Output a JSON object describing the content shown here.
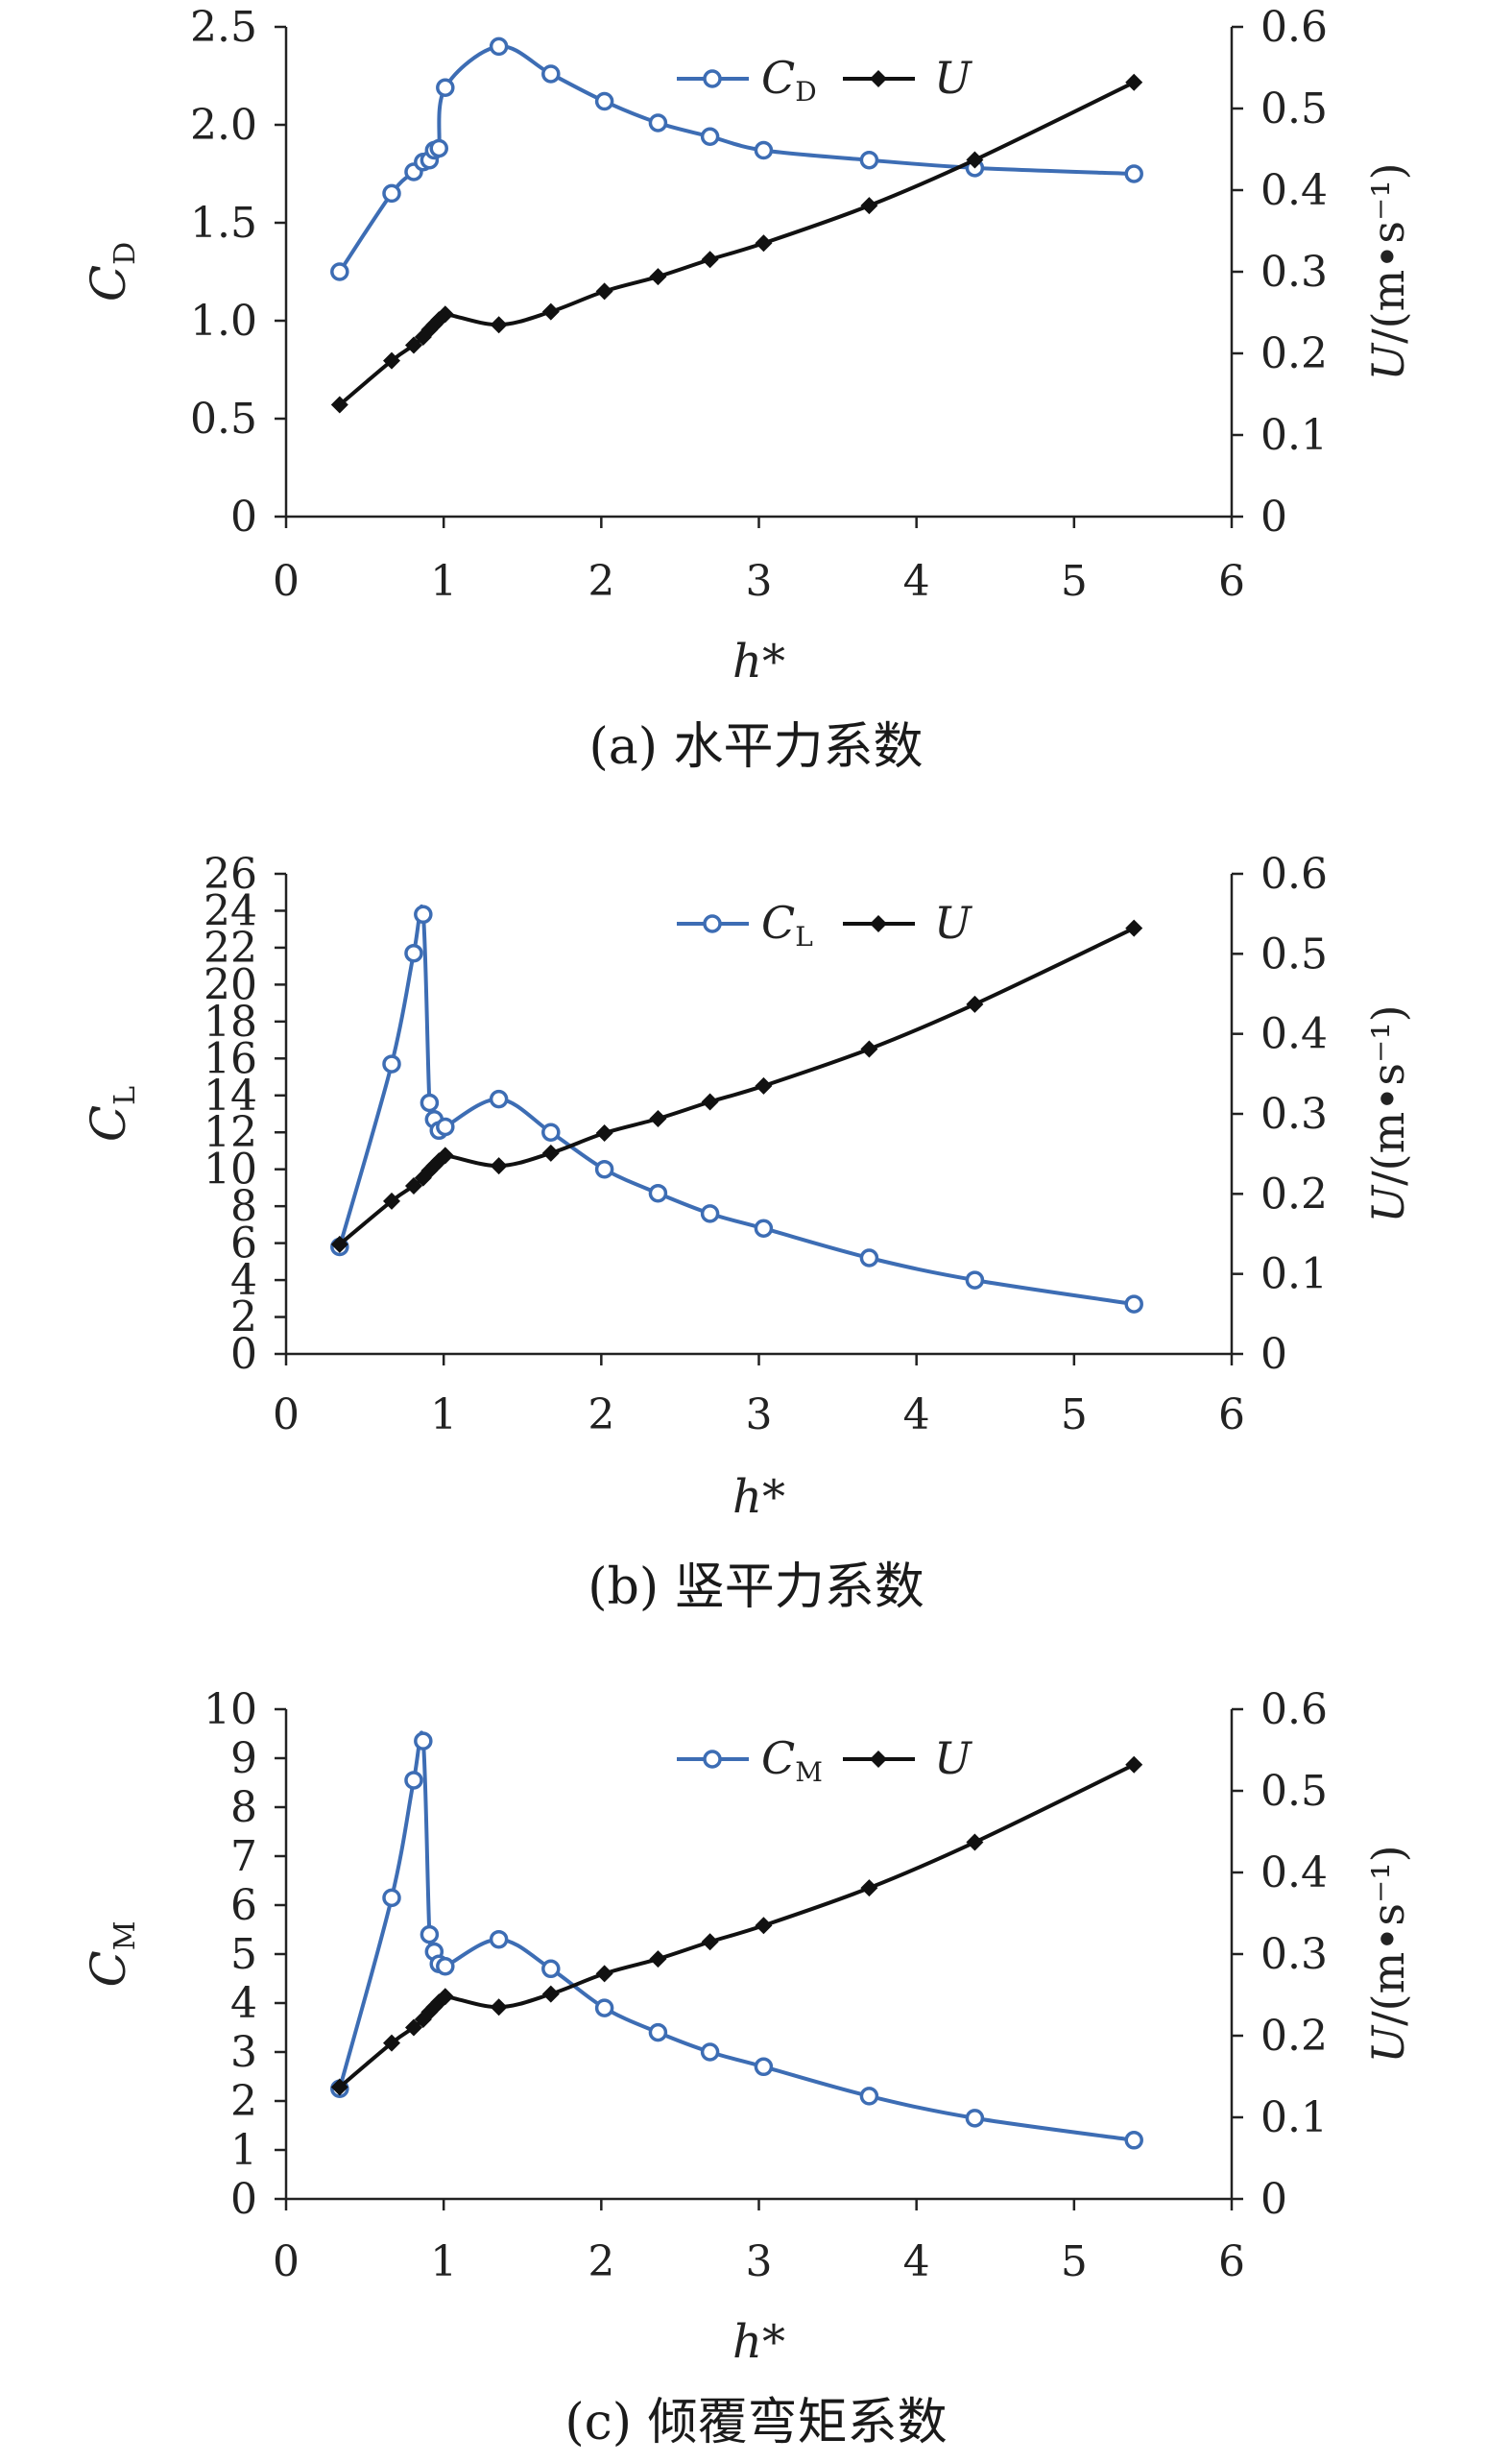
{
  "colors": {
    "coef": "#3d6db4",
    "u": "#111111",
    "axis": "#222222"
  },
  "chart_data": [
    {
      "type": "line",
      "caption": "(a) 水平力系数",
      "xlabel": "h*",
      "ylabel": "C",
      "ylabel_sub": "D",
      "y2label": "U/(m•s⁻¹)",
      "xlim": [
        0,
        6
      ],
      "xticks": [
        "0",
        "1",
        "2",
        "3",
        "4",
        "5",
        "6"
      ],
      "ylim": [
        0,
        2.5
      ],
      "yticks": [
        "0",
        "0.5",
        "1.0",
        "1.5",
        "2.0",
        "2.5"
      ],
      "y2lim": [
        0,
        0.6
      ],
      "y2ticks": [
        "0",
        "0.1",
        "0.2",
        "0.3",
        "0.4",
        "0.5",
        "0.6"
      ],
      "legend": {
        "position": "top-center",
        "coef_label": "C",
        "coef_sub": "D",
        "u_label": "U"
      },
      "series": [
        {
          "name": "CD",
          "axis": "left",
          "marker": "circle",
          "x": [
            0.34,
            0.67,
            0.81,
            0.87,
            0.91,
            0.94,
            0.97,
            1.01,
            1.35,
            1.68,
            2.02,
            2.36,
            2.69,
            3.03,
            3.7,
            4.37,
            5.38
          ],
          "y": [
            1.25,
            1.65,
            1.76,
            1.81,
            1.82,
            1.87,
            1.88,
            2.19,
            2.4,
            2.26,
            2.12,
            2.01,
            1.94,
            1.87,
            1.82,
            1.78,
            1.75
          ]
        },
        {
          "name": "U",
          "axis": "right",
          "marker": "diamond",
          "x": [
            0.34,
            0.67,
            0.81,
            0.87,
            0.91,
            0.94,
            0.97,
            1.01,
            1.35,
            1.68,
            2.02,
            2.36,
            2.69,
            3.03,
            3.7,
            4.37,
            5.38
          ],
          "y": [
            0.137,
            0.191,
            0.21,
            0.22,
            0.229,
            0.235,
            0.241,
            0.248,
            0.235,
            0.251,
            0.276,
            0.294,
            0.315,
            0.335,
            0.381,
            0.437,
            0.532
          ]
        }
      ]
    },
    {
      "type": "line",
      "caption": "(b) 竖平力系数",
      "xlabel": "h*",
      "ylabel": "C",
      "ylabel_sub": "L",
      "y2label": "U/(m•s⁻¹)",
      "xlim": [
        0,
        6
      ],
      "xticks": [
        "0",
        "1",
        "2",
        "3",
        "4",
        "5",
        "6"
      ],
      "ylim": [
        0,
        26
      ],
      "yticks": [
        "0",
        "2",
        "4",
        "6",
        "8",
        "10",
        "12",
        "14",
        "16",
        "18",
        "20",
        "22",
        "24",
        "26"
      ],
      "y2lim": [
        0,
        0.6
      ],
      "y2ticks": [
        "0",
        "0.1",
        "0.2",
        "0.3",
        "0.4",
        "0.5",
        "0.6"
      ],
      "legend": {
        "position": "top-center",
        "coef_label": "C",
        "coef_sub": "L",
        "u_label": "U"
      },
      "series": [
        {
          "name": "CL",
          "axis": "left",
          "marker": "circle",
          "x": [
            0.34,
            0.67,
            0.81,
            0.87,
            0.91,
            0.94,
            0.97,
            1.01,
            1.35,
            1.68,
            2.02,
            2.36,
            2.69,
            3.03,
            3.7,
            4.37,
            5.38
          ],
          "y": [
            5.8,
            15.7,
            21.7,
            23.8,
            13.6,
            12.7,
            12.1,
            12.3,
            13.8,
            12.0,
            10.0,
            8.7,
            7.6,
            6.8,
            5.2,
            4.0,
            2.7
          ]
        },
        {
          "name": "U",
          "axis": "right",
          "marker": "diamond",
          "x": [
            0.34,
            0.67,
            0.81,
            0.87,
            0.91,
            0.94,
            0.97,
            1.01,
            1.35,
            1.68,
            2.02,
            2.36,
            2.69,
            3.03,
            3.7,
            4.37,
            5.38
          ],
          "y": [
            0.137,
            0.191,
            0.21,
            0.22,
            0.229,
            0.235,
            0.241,
            0.248,
            0.235,
            0.251,
            0.276,
            0.294,
            0.315,
            0.335,
            0.381,
            0.437,
            0.532
          ]
        }
      ]
    },
    {
      "type": "line",
      "caption": "(c) 倾覆弯矩系数",
      "xlabel": "h*",
      "ylabel": "C",
      "ylabel_sub": "M",
      "y2label": "U/(m•s⁻¹)",
      "xlim": [
        0,
        6
      ],
      "xticks": [
        "0",
        "1",
        "2",
        "3",
        "4",
        "5",
        "6"
      ],
      "ylim": [
        0,
        10
      ],
      "yticks": [
        "0",
        "1",
        "2",
        "3",
        "4",
        "5",
        "6",
        "7",
        "8",
        "9",
        "10"
      ],
      "y2lim": [
        0,
        0.6
      ],
      "y2ticks": [
        "0",
        "0.1",
        "0.2",
        "0.3",
        "0.4",
        "0.5",
        "0.6"
      ],
      "legend": {
        "position": "top-center",
        "coef_label": "C",
        "coef_sub": "M",
        "u_label": "U"
      },
      "series": [
        {
          "name": "CM",
          "axis": "left",
          "marker": "circle",
          "x": [
            0.34,
            0.67,
            0.81,
            0.87,
            0.91,
            0.94,
            0.97,
            1.01,
            1.35,
            1.68,
            2.02,
            2.36,
            2.69,
            3.03,
            3.7,
            4.37,
            5.38
          ],
          "y": [
            2.25,
            6.15,
            8.55,
            9.35,
            5.4,
            5.05,
            4.8,
            4.75,
            5.3,
            4.7,
            3.9,
            3.4,
            3.0,
            2.7,
            2.1,
            1.65,
            1.2
          ]
        },
        {
          "name": "U",
          "axis": "right",
          "marker": "diamond",
          "x": [
            0.34,
            0.67,
            0.81,
            0.87,
            0.91,
            0.94,
            0.97,
            1.01,
            1.35,
            1.68,
            2.02,
            2.36,
            2.69,
            3.03,
            3.7,
            4.37,
            5.38
          ],
          "y": [
            0.137,
            0.191,
            0.21,
            0.22,
            0.229,
            0.235,
            0.241,
            0.248,
            0.235,
            0.251,
            0.276,
            0.294,
            0.315,
            0.335,
            0.381,
            0.437,
            0.532
          ]
        }
      ]
    }
  ]
}
